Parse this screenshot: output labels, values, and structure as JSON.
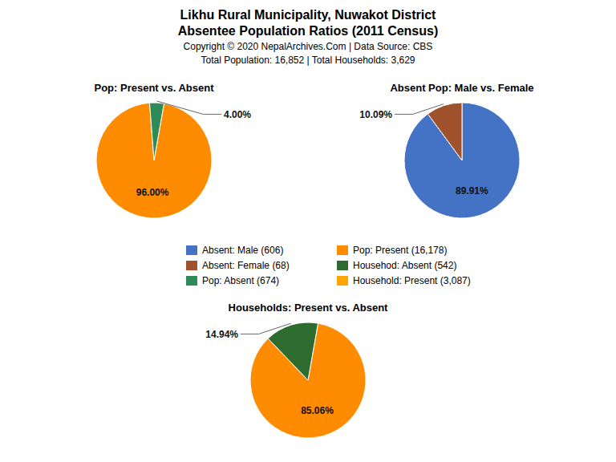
{
  "title": "Likhu Rural Municipality, Nuwakot District",
  "subtitle": "Absentee Population Ratios (2011 Census)",
  "annotations": [
    "Copyright © 2020 NepalArchives.Com | Data Source: CBS",
    "Total Population: 16,852 | Total Households: 3,629"
  ],
  "legend_entries": [
    {
      "name": "Absent: Male (606)",
      "color": "#4472C4"
    },
    {
      "name": "Absent: Female (68)",
      "color": "#A0522D"
    },
    {
      "name": "Pop: Absent (674)",
      "color": "#2E8B57"
    },
    {
      "name": "Pop: Present (16,178)",
      "color": "#FF8C00"
    },
    {
      "name": "Househod: Absent (542)",
      "color": "#2E6B2E"
    },
    {
      "name": "Household: Present (3,087)",
      "color": "#FFA500"
    }
  ],
  "chart_data": [
    {
      "type": "pie",
      "title": "Pop: Present vs. Absent",
      "values": [
        96.0,
        4.0
      ],
      "value_labels": [
        "96.00%",
        "4.00%"
      ],
      "colors": [
        "#FF8C00",
        "#2E8B57"
      ],
      "data_labels": true
    },
    {
      "type": "pie",
      "title": "Absent Pop: Male vs. Female",
      "values": [
        89.91,
        10.09
      ],
      "value_labels": [
        "89.91%",
        "10.09%"
      ],
      "colors": [
        "#4472C4",
        "#A0522D"
      ],
      "data_labels": true
    },
    {
      "type": "pie",
      "title": "Households: Present vs. Absent",
      "values": [
        85.06,
        14.94
      ],
      "value_labels": [
        "85.06%",
        "14.94%"
      ],
      "colors": [
        "#FF8C00",
        "#2E6B2E"
      ],
      "data_labels": true
    }
  ]
}
